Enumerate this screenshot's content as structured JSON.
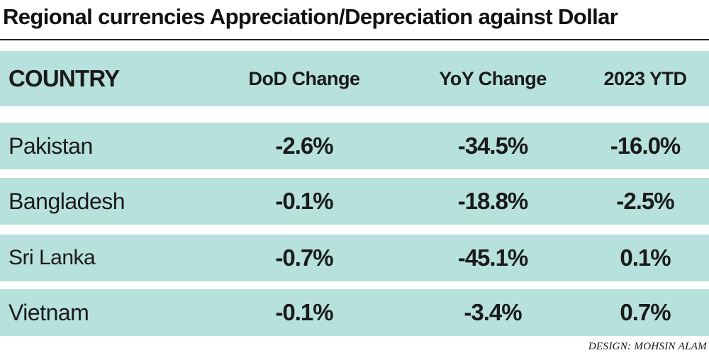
{
  "title": "Regional currencies Appreciation/Depreciation against Dollar",
  "columns": [
    "COUNTRY",
    "DoD Change",
    "YoY Change",
    "2023 YTD"
  ],
  "rows": [
    {
      "country": "Pakistan",
      "dod": "-2.6%",
      "yoy": "-34.5%",
      "ytd": "-16.0%"
    },
    {
      "country": "Bangladesh",
      "dod": "-0.1%",
      "yoy": "-18.8%",
      "ytd": "-2.5%"
    },
    {
      "country": "Sri Lanka",
      "dod": "-0.7%",
      "yoy": "-45.1%",
      "ytd": "0.1%"
    },
    {
      "country": "Vietnam",
      "dod": "-0.1%",
      "yoy": "-3.4%",
      "ytd": "0.7%"
    }
  ],
  "credit": "DESIGN: MOHSIN ALAM",
  "colors": {
    "band": "#b7e1dc",
    "rule": "#222222",
    "text": "#1a1a1a"
  },
  "chart_data": {
    "type": "table",
    "title": "Regional currencies Appreciation/Depreciation against Dollar",
    "columns": [
      "COUNTRY",
      "DoD Change",
      "YoY Change",
      "2023 YTD"
    ],
    "rows": [
      [
        "Pakistan",
        -2.6,
        -34.5,
        -16.0
      ],
      [
        "Bangladesh",
        -0.1,
        -18.8,
        -2.5
      ],
      [
        "Sri Lanka",
        -0.7,
        -45.1,
        0.1
      ],
      [
        "Vietnam",
        -0.1,
        -3.4,
        0.7
      ]
    ],
    "unit": "%"
  }
}
